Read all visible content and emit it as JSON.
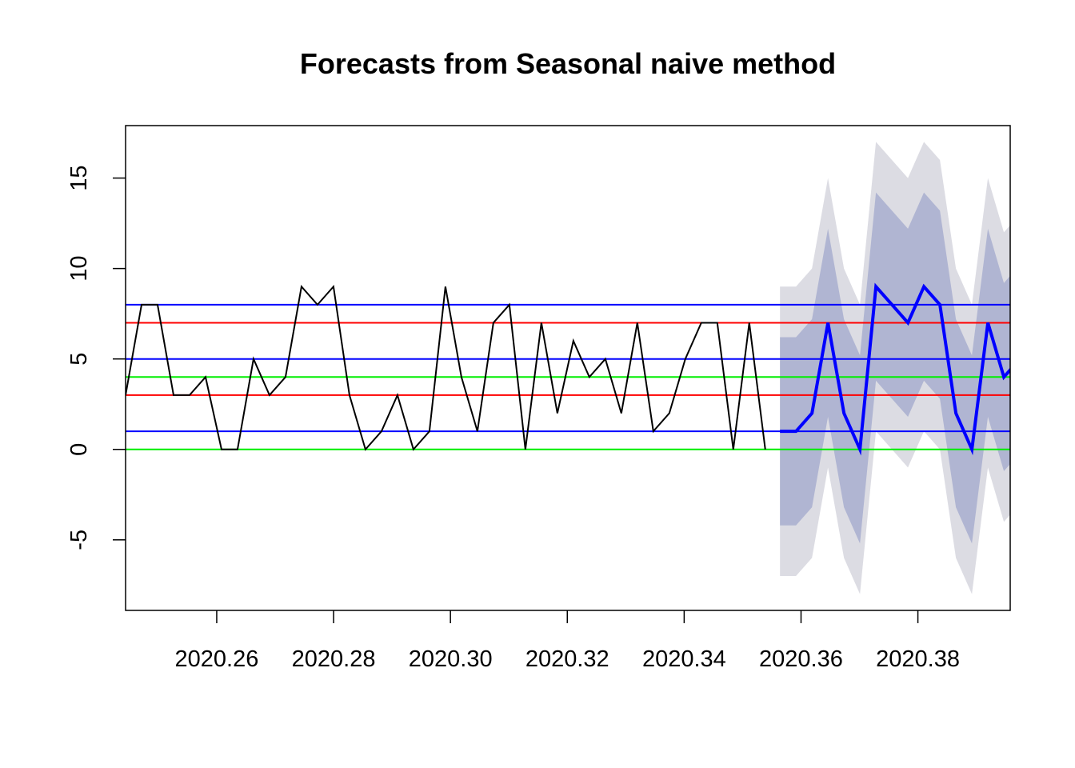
{
  "chart_data": {
    "type": "line",
    "title": "Forecasts from Seasonal naive method",
    "xlabel": "",
    "ylabel": "",
    "xlim": [
      2020.2444,
      2020.3958
    ],
    "ylim": [
      -8.9,
      17.9
    ],
    "x_ticks": [
      2020.26,
      2020.28,
      2020.3,
      2020.32,
      2020.34,
      2020.36,
      2020.38
    ],
    "x_tick_labels": [
      "2020.26",
      "2020.28",
      "2020.30",
      "2020.32",
      "2020.34",
      "2020.36",
      "2020.38"
    ],
    "y_ticks": [
      -5,
      0,
      5,
      10,
      15
    ],
    "y_tick_labels": [
      "-5",
      "0",
      "5",
      "10",
      "15"
    ],
    "grid": false,
    "legend": "none",
    "series": [
      {
        "role": "observed",
        "color": "#000000",
        "x_start": 2020.2444,
        "x_step": 0.002737,
        "values": [
          3,
          8,
          8,
          3,
          3,
          4,
          0,
          0,
          5,
          3,
          4,
          9,
          8,
          9,
          3,
          0,
          1,
          3,
          0,
          1,
          9,
          4,
          1,
          7,
          8,
          0,
          7,
          2,
          6,
          4,
          5,
          2,
          7,
          1,
          2,
          5,
          7,
          7,
          0,
          7,
          0
        ]
      },
      {
        "role": "forecast",
        "color": "#0000ff",
        "x_start": 2020.3564,
        "x_step": 0.002737,
        "values": [
          1,
          1,
          2,
          7,
          2,
          0,
          9,
          8,
          7,
          9,
          8,
          2,
          0,
          7,
          4,
          5
        ],
        "lower_80": [
          -4.2,
          -4.2,
          -3.2,
          1.8,
          -3.2,
          -5.2,
          3.8,
          2.8,
          1.8,
          3.8,
          2.8,
          -3.2,
          -5.2,
          1.8,
          -1.2,
          -0.2
        ],
        "upper_80": [
          6.2,
          6.2,
          7.2,
          12.2,
          7.2,
          5.2,
          14.2,
          13.2,
          12.2,
          14.2,
          13.2,
          7.2,
          5.2,
          12.2,
          9.2,
          10.2
        ],
        "lower_95": [
          -7,
          -7,
          -6,
          -1,
          -6,
          -8,
          1,
          0,
          -1,
          1,
          0,
          -6,
          -8,
          -1,
          -4,
          -3
        ],
        "upper_95": [
          9,
          9,
          10,
          15,
          10,
          8,
          17,
          16,
          15,
          17,
          16,
          10,
          8,
          15,
          12,
          13
        ],
        "band_80_color": "#b0b5d2",
        "band_95_color": "#dcdce3"
      }
    ],
    "hlines": [
      {
        "y": 8,
        "color": "#0000ff"
      },
      {
        "y": 7,
        "color": "#ff0000"
      },
      {
        "y": 5,
        "color": "#0000ff"
      },
      {
        "y": 4,
        "color": "#00ee00"
      },
      {
        "y": 3,
        "color": "#ff0000"
      },
      {
        "y": 1,
        "color": "#0000ff"
      },
      {
        "y": 0,
        "color": "#00ee00"
      }
    ]
  }
}
